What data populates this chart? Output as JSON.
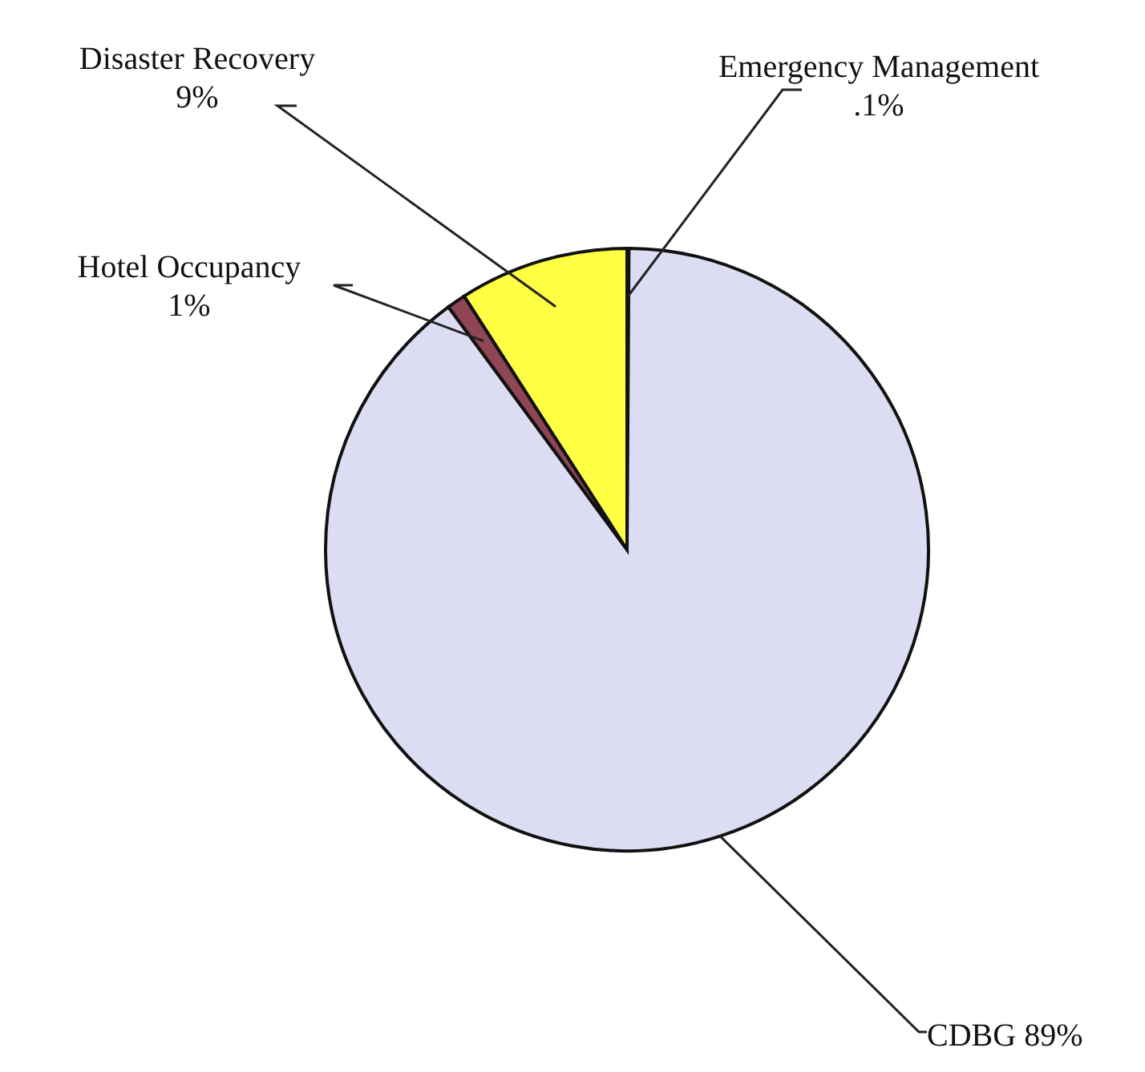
{
  "chart_data": {
    "type": "pie",
    "categories": [
      "Emergency Management",
      "CDBG",
      "Hotel Occupancy",
      "Disaster Recovery"
    ],
    "values": [
      0.1,
      89,
      1,
      9
    ],
    "colors": [
      "#2a2a2a",
      "#dcdcf2",
      "#8e4654",
      "#ffff44"
    ],
    "value_labels": [
      ".1%",
      "89%",
      "1%",
      "9%"
    ]
  }
}
